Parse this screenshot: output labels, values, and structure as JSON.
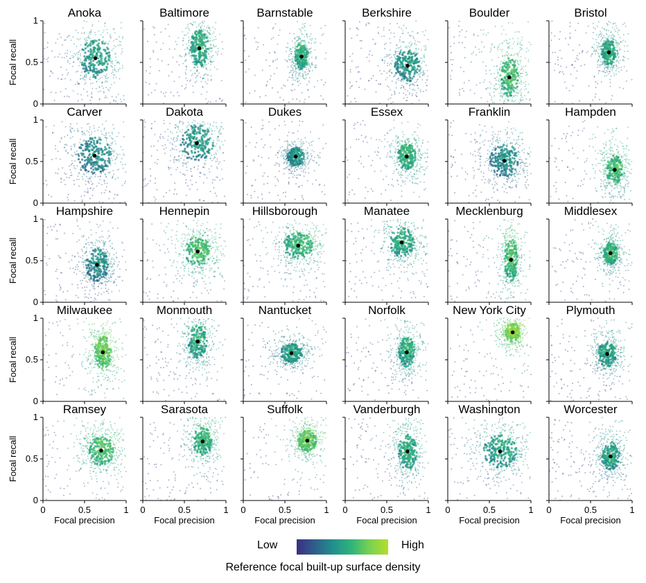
{
  "chart_data": {
    "type": "scatter",
    "xlabel": "Focal precision",
    "ylabel": "Focal recall",
    "xlim": [
      0,
      1
    ],
    "ylim": [
      0,
      1
    ],
    "x_ticks": [
      "0",
      "0.5",
      "1"
    ],
    "y_ticks": [
      "0",
      "0.5",
      "1"
    ],
    "grid": false,
    "colorbar": {
      "title": "Reference focal built-up  surface density",
      "low_label": "Low",
      "high_label": "High",
      "colors": [
        "#3b2f80",
        "#2f5f8c",
        "#21908c",
        "#2fb47c",
        "#7ad151",
        "#b5de2b"
      ]
    },
    "marker_color": "#000000",
    "panels": [
      {
        "name": "Anoka",
        "cx": 0.63,
        "cy": 0.55,
        "sx": 0.16,
        "sy": 0.22,
        "density": 0.55
      },
      {
        "name": "Baltimore",
        "cx": 0.68,
        "cy": 0.67,
        "sx": 0.1,
        "sy": 0.2,
        "density": 0.6
      },
      {
        "name": "Barnstable",
        "cx": 0.7,
        "cy": 0.57,
        "sx": 0.07,
        "sy": 0.15,
        "density": 0.62
      },
      {
        "name": "Berkshire",
        "cx": 0.75,
        "cy": 0.46,
        "sx": 0.14,
        "sy": 0.18,
        "density": 0.5
      },
      {
        "name": "Boulder",
        "cx": 0.74,
        "cy": 0.32,
        "sx": 0.1,
        "sy": 0.22,
        "density": 0.7
      },
      {
        "name": "Bristol",
        "cx": 0.72,
        "cy": 0.62,
        "sx": 0.08,
        "sy": 0.14,
        "density": 0.6
      },
      {
        "name": "Carver",
        "cx": 0.62,
        "cy": 0.57,
        "sx": 0.18,
        "sy": 0.2,
        "density": 0.45
      },
      {
        "name": "Dakota",
        "cx": 0.65,
        "cy": 0.72,
        "sx": 0.18,
        "sy": 0.2,
        "density": 0.5
      },
      {
        "name": "Dukes",
        "cx": 0.63,
        "cy": 0.56,
        "sx": 0.09,
        "sy": 0.1,
        "density": 0.5
      },
      {
        "name": "Essex",
        "cx": 0.74,
        "cy": 0.56,
        "sx": 0.1,
        "sy": 0.14,
        "density": 0.65
      },
      {
        "name": "Franklin",
        "cx": 0.68,
        "cy": 0.51,
        "sx": 0.16,
        "sy": 0.18,
        "density": 0.45
      },
      {
        "name": "Hampden",
        "cx": 0.79,
        "cy": 0.4,
        "sx": 0.09,
        "sy": 0.16,
        "density": 0.7
      },
      {
        "name": "Hampshire",
        "cx": 0.65,
        "cy": 0.45,
        "sx": 0.12,
        "sy": 0.18,
        "density": 0.45
      },
      {
        "name": "Hennepin",
        "cx": 0.66,
        "cy": 0.61,
        "sx": 0.14,
        "sy": 0.16,
        "density": 0.7
      },
      {
        "name": "Hillsborough",
        "cx": 0.66,
        "cy": 0.68,
        "sx": 0.16,
        "sy": 0.14,
        "density": 0.65
      },
      {
        "name": "Manatee",
        "cx": 0.68,
        "cy": 0.72,
        "sx": 0.14,
        "sy": 0.16,
        "density": 0.6
      },
      {
        "name": "Mecklenburg",
        "cx": 0.76,
        "cy": 0.51,
        "sx": 0.07,
        "sy": 0.24,
        "density": 0.7
      },
      {
        "name": "Middlesex",
        "cx": 0.74,
        "cy": 0.59,
        "sx": 0.08,
        "sy": 0.12,
        "density": 0.65
      },
      {
        "name": "Milwaukee",
        "cx": 0.72,
        "cy": 0.59,
        "sx": 0.09,
        "sy": 0.18,
        "density": 0.8
      },
      {
        "name": "Monmouth",
        "cx": 0.66,
        "cy": 0.72,
        "sx": 0.1,
        "sy": 0.18,
        "density": 0.6
      },
      {
        "name": "Nantucket",
        "cx": 0.58,
        "cy": 0.58,
        "sx": 0.12,
        "sy": 0.1,
        "density": 0.55
      },
      {
        "name": "Norfolk",
        "cx": 0.74,
        "cy": 0.59,
        "sx": 0.09,
        "sy": 0.16,
        "density": 0.6
      },
      {
        "name": "New York City",
        "cx": 0.78,
        "cy": 0.83,
        "sx": 0.08,
        "sy": 0.1,
        "density": 0.9
      },
      {
        "name": "Plymouth",
        "cx": 0.7,
        "cy": 0.57,
        "sx": 0.1,
        "sy": 0.14,
        "density": 0.55
      },
      {
        "name": "Ramsey",
        "cx": 0.7,
        "cy": 0.6,
        "sx": 0.14,
        "sy": 0.16,
        "density": 0.7
      },
      {
        "name": "Sarasota",
        "cx": 0.72,
        "cy": 0.71,
        "sx": 0.1,
        "sy": 0.16,
        "density": 0.65
      },
      {
        "name": "Suffolk",
        "cx": 0.77,
        "cy": 0.72,
        "sx": 0.1,
        "sy": 0.12,
        "density": 0.8
      },
      {
        "name": "Vanderburgh",
        "cx": 0.75,
        "cy": 0.59,
        "sx": 0.1,
        "sy": 0.2,
        "density": 0.6
      },
      {
        "name": "Washington",
        "cx": 0.63,
        "cy": 0.59,
        "sx": 0.18,
        "sy": 0.18,
        "density": 0.55
      },
      {
        "name": "Worcester",
        "cx": 0.74,
        "cy": 0.53,
        "sx": 0.1,
        "sy": 0.16,
        "density": 0.55
      }
    ]
  }
}
